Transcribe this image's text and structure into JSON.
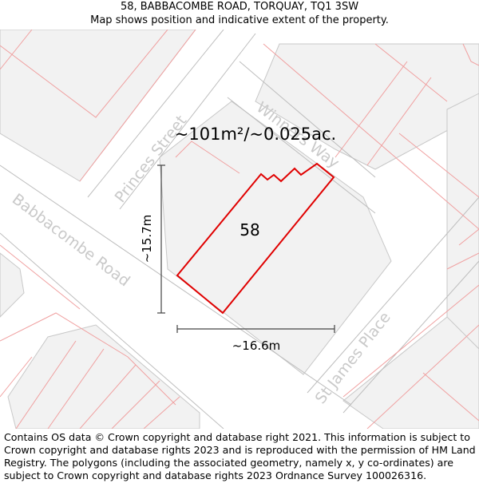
{
  "header": {
    "address": "58, BABBACOMBE ROAD, TORQUAY, TQ1 3SW",
    "subtitle": "Map shows position and indicative extent of the property."
  },
  "map": {
    "area_label": "~101m²/~0.025ac.",
    "plot_number": "58",
    "height_label": "~15.7m",
    "width_label": "~16.6m",
    "streets": {
      "princes": "Princes Street",
      "winners": "Winners Way",
      "babbacombe": "Babbacombe Road",
      "st_james": "St James Place"
    },
    "colors": {
      "boundary": "#e00000",
      "parcel_line": "#f0a0a0",
      "building_fill": "#f2f2f2",
      "road_edge": "#bdbdbd",
      "street_text": "#c9c9c9"
    }
  },
  "footer": {
    "copyright": "Contains OS data © Crown copyright and database right 2021. This information is subject to Crown copyright and database rights 2023 and is reproduced with the permission of HM Land Registry. The polygons (including the associated geometry, namely x, y co-ordinates) are subject to Crown copyright and database rights 2023 Ordnance Survey 100026316."
  }
}
